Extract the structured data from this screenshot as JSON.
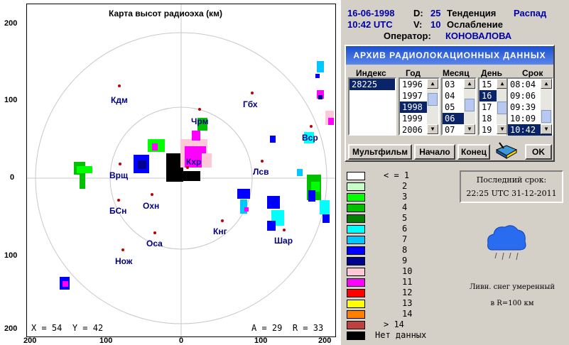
{
  "map": {
    "title": "Карта высот радиоэха (км)",
    "left_ticks": [
      "200",
      "100",
      "0",
      "100",
      "200"
    ],
    "bottom_ticks": [
      "200",
      "100",
      "0",
      "100",
      "200"
    ],
    "cities": [
      {
        "name": "Кдм"
      },
      {
        "name": "Гбх"
      },
      {
        "name": "Чрм"
      },
      {
        "name": "Вср"
      },
      {
        "name": "Врщ"
      },
      {
        "name": "Лсв"
      },
      {
        "name": "БСн"
      },
      {
        "name": "Охн"
      },
      {
        "name": "Кнг"
      },
      {
        "name": "Шар"
      },
      {
        "name": "Оса"
      },
      {
        "name": "Нож"
      },
      {
        "name": "Кхр"
      }
    ],
    "cursor": {
      "x_label": "X =",
      "x": "54",
      "y_label": "Y =",
      "y": "42",
      "a_label": "A =",
      "a": "29",
      "r_label": "R =",
      "r": "33"
    }
  },
  "header": {
    "date": "16-06-1998",
    "time": "10:42 UTC",
    "d_label": "D:",
    "d_value": "25",
    "v_label": "V:",
    "v_value": "10",
    "trend_label": "Тенденция",
    "trend_value": "Распад",
    "weaken_label": "Ослабление",
    "operator_label": "Оператор:",
    "operator_value": "КОНОВАЛОВА"
  },
  "archive": {
    "title": "АРХИВ РАДИОЛОКАЦИОННЫХ ДАННЫХ",
    "col_index": "Индекс",
    "col_year": "Год",
    "col_month": "Месяц",
    "col_day": "День",
    "col_term": "Срок",
    "index_items": [
      "28225"
    ],
    "years": [
      "1996",
      "1997",
      "1998",
      "1999",
      "2006"
    ],
    "months": [
      "03",
      "04",
      "05",
      "06",
      "07"
    ],
    "days": [
      "15",
      "16",
      "17",
      "18",
      "19"
    ],
    "terms": [
      "08:04",
      "09:06",
      "09:39",
      "10:09",
      "10:42"
    ],
    "selected": {
      "index": "28225",
      "year": "1998",
      "month": "06",
      "day": "16",
      "term": "10:42"
    },
    "btn_film": "Мультфильм",
    "btn_start": "Начало",
    "btn_end": "Конец",
    "btn_ok": "OK"
  },
  "legend": {
    "items": [
      {
        "label": "< = 1",
        "color": "#ffffff"
      },
      {
        "label": "2",
        "color": "#c8ffc8"
      },
      {
        "label": "3",
        "color": "#00ff00"
      },
      {
        "label": "4",
        "color": "#00c000"
      },
      {
        "label": "5",
        "color": "#008000"
      },
      {
        "label": "6",
        "color": "#00ffff"
      },
      {
        "label": "7",
        "color": "#00c8ff"
      },
      {
        "label": "8",
        "color": "#0000ff"
      },
      {
        "label": "9",
        "color": "#000090"
      },
      {
        "label": "10",
        "color": "#ffc8d8"
      },
      {
        "label": "11",
        "color": "#ff00ff"
      },
      {
        "label": "12",
        "color": "#ff0000"
      },
      {
        "label": "13",
        "color": "#ffff00"
      },
      {
        "label": "14",
        "color": "#ff8000"
      },
      {
        "label": "> 14",
        "color": "#c04040"
      },
      {
        "label": "Нет данных",
        "color": "#000000"
      }
    ]
  },
  "last": {
    "label": "Последний срок:",
    "value": "22:25 UTC 31-12-2011"
  },
  "weather": {
    "line1": "Ливн. снег умеренный",
    "line2": "в R=100 км"
  }
}
